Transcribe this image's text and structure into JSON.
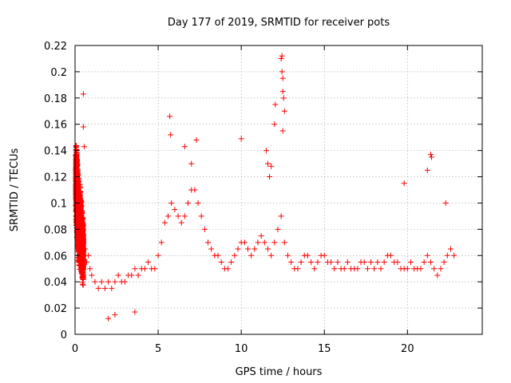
{
  "chart_data": {
    "type": "scatter",
    "title": "Day 177 of 2019, SRMTID for receiver pots",
    "xlabel": "GPS time / hours",
    "ylabel": "SRMTID / TECUs",
    "xlim": [
      0,
      24.5
    ],
    "ylim": [
      0,
      0.22
    ],
    "xticks": [
      0,
      5,
      10,
      15,
      20
    ],
    "yticks": [
      0,
      0.02,
      0.04,
      0.06,
      0.08,
      0.1,
      0.12,
      0.14,
      0.16,
      0.18,
      0.2,
      0.22
    ],
    "xtick_labels": [
      "0",
      "5",
      "10",
      "15",
      "20"
    ],
    "ytick_labels": [
      "0",
      "0.02",
      "0.04",
      "0.06",
      "0.08",
      "0.1",
      "0.12",
      "0.14",
      "0.16",
      "0.18",
      "0.2",
      "0.22"
    ],
    "grid": true,
    "marker": "plus",
    "color": "#ff0000",
    "point_count_estimate": 3000,
    "series": [
      {
        "name": "SRMTID",
        "x": [
          0.05,
          0.1,
          0.15,
          0.2,
          0.25,
          0.3,
          0.4,
          0.5,
          0.6,
          0.7,
          0.8,
          0.9,
          1.0,
          1.2,
          1.4,
          1.6,
          1.8,
          2.0,
          2.2,
          2.4,
          2.6,
          2.8,
          3.0,
          3.2,
          3.4,
          3.6,
          3.8,
          4.0,
          4.2,
          4.4,
          4.6,
          4.8,
          5.0,
          5.2,
          5.4,
          5.6,
          5.8,
          6.0,
          6.2,
          6.4,
          6.6,
          6.8,
          7.0,
          7.2,
          7.4,
          7.6,
          7.8,
          8.0,
          8.2,
          8.4,
          8.6,
          8.8,
          9.0,
          9.2,
          9.4,
          9.6,
          9.8,
          10.0,
          10.2,
          10.4,
          10.6,
          10.8,
          11.0,
          11.2,
          11.4,
          11.6,
          11.8,
          12.0,
          12.2,
          12.4,
          12.6,
          12.8,
          13.0,
          13.2,
          13.4,
          13.6,
          13.8,
          14.0,
          14.2,
          14.4,
          14.6,
          14.8,
          15.0,
          15.2,
          15.4,
          15.6,
          15.8,
          16.0,
          16.2,
          16.4,
          16.6,
          16.8,
          17.0,
          17.2,
          17.4,
          17.6,
          17.8,
          18.0,
          18.2,
          18.4,
          18.6,
          18.8,
          19.0,
          19.2,
          19.4,
          19.6,
          19.8,
          20.0,
          20.2,
          20.4,
          20.6,
          20.8,
          21.0,
          21.2,
          21.4,
          21.6,
          21.8,
          22.0,
          22.2,
          22.4,
          22.6,
          22.8,
          0.5,
          0.5,
          0.55,
          5.7,
          5.75,
          6.6,
          7.3,
          7.0,
          10.0,
          11.5,
          11.6,
          11.7,
          11.8,
          12.0,
          12.05,
          12.4,
          12.45,
          12.5,
          12.55,
          12.6,
          12.5,
          12.45,
          12.5,
          21.4,
          21.45,
          21.2,
          19.8,
          22.3,
          2.0,
          2.4,
          3.6
        ],
        "y": [
          0.12,
          0.11,
          0.1,
          0.09,
          0.08,
          0.085,
          0.07,
          0.06,
          0.065,
          0.055,
          0.06,
          0.05,
          0.045,
          0.04,
          0.035,
          0.04,
          0.035,
          0.04,
          0.035,
          0.04,
          0.045,
          0.04,
          0.04,
          0.045,
          0.045,
          0.05,
          0.045,
          0.05,
          0.05,
          0.055,
          0.05,
          0.05,
          0.06,
          0.07,
          0.085,
          0.09,
          0.1,
          0.095,
          0.09,
          0.085,
          0.09,
          0.1,
          0.11,
          0.11,
          0.1,
          0.09,
          0.08,
          0.07,
          0.065,
          0.06,
          0.06,
          0.055,
          0.05,
          0.05,
          0.055,
          0.06,
          0.065,
          0.07,
          0.07,
          0.065,
          0.06,
          0.065,
          0.07,
          0.075,
          0.07,
          0.065,
          0.06,
          0.07,
          0.08,
          0.09,
          0.07,
          0.06,
          0.055,
          0.05,
          0.05,
          0.055,
          0.06,
          0.06,
          0.055,
          0.05,
          0.055,
          0.06,
          0.06,
          0.055,
          0.055,
          0.05,
          0.055,
          0.05,
          0.05,
          0.055,
          0.05,
          0.05,
          0.05,
          0.055,
          0.055,
          0.05,
          0.055,
          0.05,
          0.055,
          0.05,
          0.055,
          0.06,
          0.06,
          0.055,
          0.055,
          0.05,
          0.05,
          0.05,
          0.055,
          0.05,
          0.05,
          0.05,
          0.055,
          0.06,
          0.055,
          0.05,
          0.045,
          0.05,
          0.055,
          0.06,
          0.065,
          0.06,
          0.183,
          0.158,
          0.143,
          0.166,
          0.152,
          0.143,
          0.148,
          0.13,
          0.149,
          0.14,
          0.13,
          0.12,
          0.128,
          0.16,
          0.175,
          0.21,
          0.2,
          0.185,
          0.18,
          0.17,
          0.155,
          0.212,
          0.195,
          0.137,
          0.135,
          0.125,
          0.115,
          0.1,
          0.012,
          0.015,
          0.017
        ]
      }
    ]
  }
}
